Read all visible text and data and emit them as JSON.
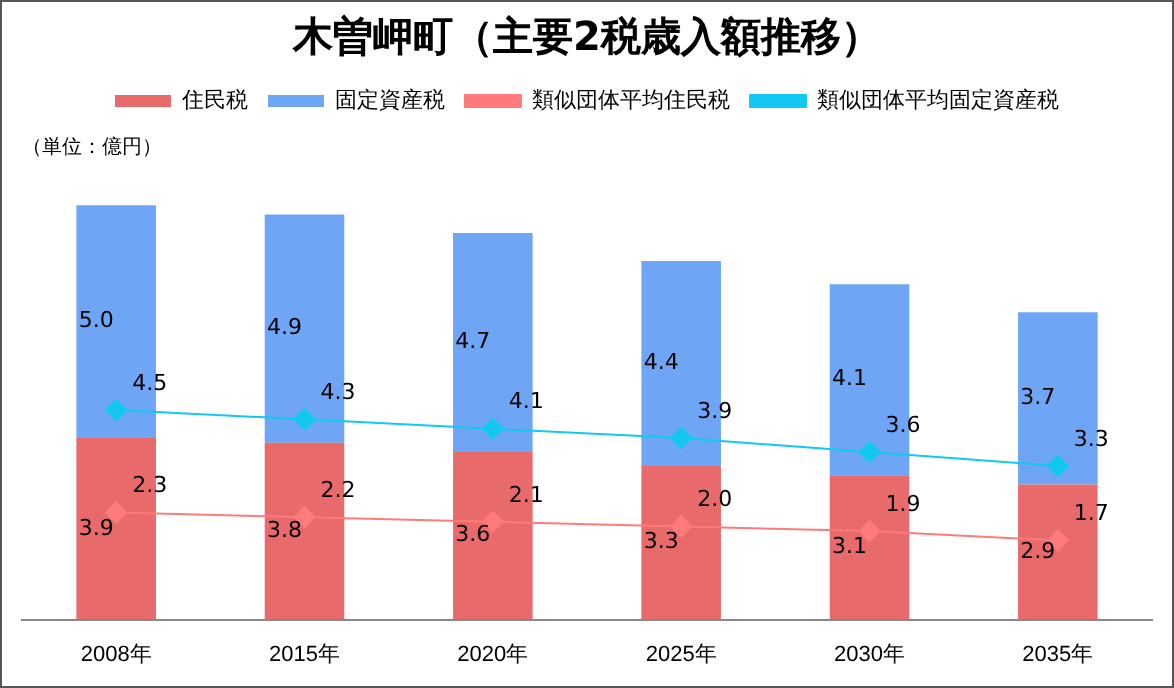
{
  "chart_data": {
    "type": "bar",
    "title": "木曽岬町（主要2税歳入額推移）",
    "categories": [
      "2008年",
      "2015年",
      "2020年",
      "2025年",
      "2030年",
      "2035年"
    ],
    "stacked": true,
    "legend": "top",
    "grid": false,
    "tick_labels": "x",
    "marker": "diamond",
    "annotations": [
      "（単位：億円）"
    ],
    "series": [
      {
        "name": "住民税",
        "color": "#e86a6a",
        "values": [
          3.9,
          3.8,
          3.6,
          3.3,
          3.1,
          2.9
        ],
        "value_labels": [
          "3.9",
          "3.8",
          "3.6",
          "3.3",
          "3.1",
          "2.9"
        ]
      },
      {
        "name": "固定資産税",
        "color": "#6ea6f5",
        "values": [
          5.0,
          4.9,
          4.7,
          4.4,
          4.1,
          3.7
        ],
        "value_labels": [
          "5.0",
          "4.9",
          "4.7",
          "4.4",
          "4.1",
          "3.7"
        ]
      },
      {
        "name": "類似団体平均住民税",
        "type": "line",
        "color": "#ff7a7a",
        "values": [
          2.3,
          2.2,
          2.1,
          2.0,
          1.9,
          1.7
        ],
        "value_labels": [
          "2.3",
          "2.2",
          "2.1",
          "2.0",
          "1.9",
          "1.7"
        ]
      },
      {
        "name": "類似団体平均固定資産税",
        "type": "line",
        "color": "#12c8f0",
        "values": [
          4.5,
          4.3,
          4.1,
          3.9,
          3.6,
          3.3
        ],
        "value_labels": [
          "4.5",
          "4.3",
          "4.1",
          "3.9",
          "3.6",
          "3.3"
        ]
      }
    ]
  }
}
